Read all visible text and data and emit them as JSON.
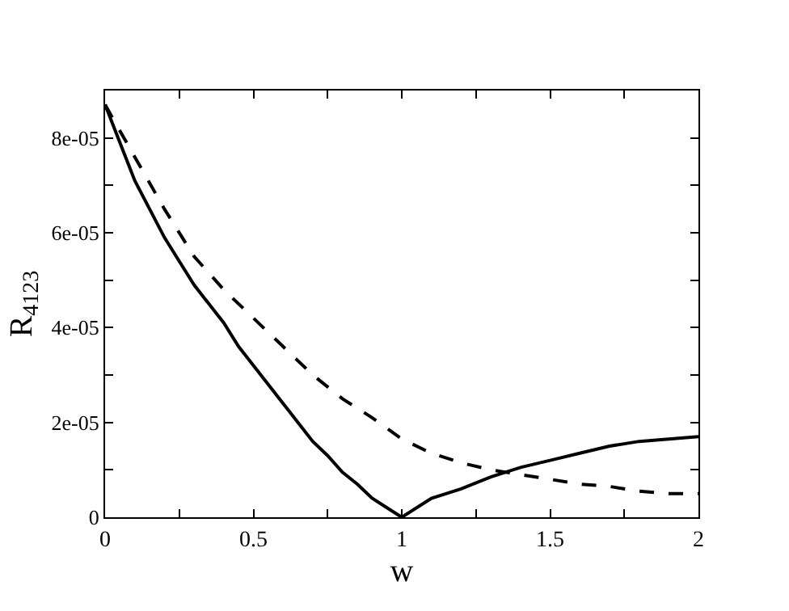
{
  "chart_data": {
    "type": "line",
    "xlabel": "w",
    "ylabel": "R$_{4123}$",
    "xlim": [
      0,
      2
    ],
    "ylim": [
      0,
      9e-05
    ],
    "xticks": [
      0,
      {
        "value": 0.25,
        "label": null
      },
      0.5,
      {
        "value": 0.75,
        "label": null
      },
      1,
      {
        "value": 1.25,
        "label": null
      },
      1.5,
      {
        "value": 1.75,
        "label": null
      },
      2
    ],
    "yticks": [
      0,
      {
        "value": 1e-05,
        "label": null
      },
      {
        "value": 2e-05,
        "label": "2e-05"
      },
      {
        "value": 3e-05,
        "label": null
      },
      {
        "value": 4e-05,
        "label": "4e-05"
      },
      {
        "value": 5e-05,
        "label": null
      },
      {
        "value": 6e-05,
        "label": "6e-05"
      },
      {
        "value": 7e-05,
        "label": null
      },
      {
        "value": 8e-05,
        "label": "8e-05"
      }
    ],
    "grid": false,
    "marker": "none",
    "series": [
      {
        "color": "#000000",
        "line_style": "solid",
        "x": [
          0,
          0.05,
          0.1,
          0.15,
          0.2,
          0.25,
          0.3,
          0.35,
          0.4,
          0.45,
          0.5,
          0.55,
          0.6,
          0.65,
          0.7,
          0.75,
          0.8,
          0.85,
          0.9,
          0.95,
          1,
          1.05,
          1.1,
          1.2,
          1.3,
          1.4,
          1.5,
          1.6,
          1.7,
          1.8,
          1.9,
          2
        ],
        "values": [
          8.7e-05,
          7.9e-05,
          7.1e-05,
          6.5e-05,
          5.9e-05,
          5.4e-05,
          4.9e-05,
          4.5e-05,
          4.1e-05,
          3.6e-05,
          3.2e-05,
          2.8e-05,
          2.4e-05,
          2e-05,
          1.6e-05,
          1.3e-05,
          9.5e-06,
          7e-06,
          4e-06,
          2e-06,
          0,
          2e-06,
          4e-06,
          6e-06,
          8.5e-06,
          1.05e-05,
          1.2e-05,
          1.35e-05,
          1.5e-05,
          1.6e-05,
          1.65e-05,
          1.7e-05
        ]
      },
      {
        "color": "#000000",
        "line_style": "dashed",
        "x": [
          0,
          0.1,
          0.2,
          0.3,
          0.4,
          0.5,
          0.6,
          0.7,
          0.8,
          0.9,
          1,
          1.1,
          1.2,
          1.3,
          1.4,
          1.5,
          1.6,
          1.7,
          1.8,
          1.9,
          2
        ],
        "values": [
          8.7e-05,
          7.6e-05,
          6.5e-05,
          5.5e-05,
          4.8e-05,
          4.2e-05,
          3.6e-05,
          3e-05,
          2.5e-05,
          2.1e-05,
          1.65e-05,
          1.35e-05,
          1.15e-05,
          1e-05,
          9e-06,
          8e-06,
          7e-06,
          6.5e-06,
          5.5e-06,
          5e-06,
          5e-06
        ]
      }
    ]
  }
}
